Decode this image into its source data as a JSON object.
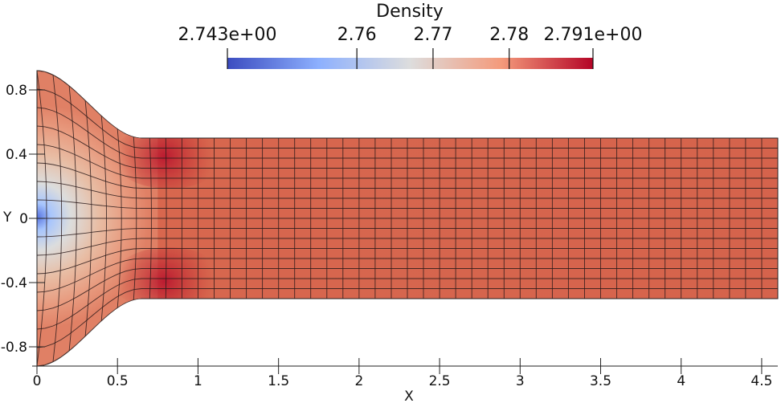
{
  "chart_data": {
    "type": "heatmap",
    "title": "Density",
    "xlabel": "X",
    "ylabel": "Y",
    "xlim": [
      0,
      4.6
    ],
    "ylim": [
      -0.92,
      0.92
    ],
    "x_ticks": [
      0,
      0.5,
      1,
      1.5,
      2,
      2.5,
      3,
      3.5,
      4,
      4.5
    ],
    "x_tick_labels": [
      "0",
      "0.5",
      "1",
      "1.5",
      "2",
      "2.5",
      "3",
      "3.5",
      "4",
      "4.5"
    ],
    "y_ticks": [
      0.8,
      0.4,
      0,
      -0.4,
      -0.8
    ],
    "y_tick_labels": [
      "0.8",
      "0.4",
      "0",
      "-0.4",
      "-0.8"
    ],
    "colorbar": {
      "label": "Density",
      "range": [
        2.743,
        2.791
      ],
      "min_label": "2.743e+00",
      "max_label": "2.791e+00",
      "ticks": [
        2.76,
        2.77,
        2.78
      ],
      "tick_labels": [
        "2.76",
        "2.77",
        "2.78"
      ],
      "colormap": "cool-to-warm",
      "colors": [
        "#3b4cc0",
        "#dddddd",
        "#b40426"
      ],
      "placement": "top"
    },
    "domain": {
      "inlet_half_height": 0.92,
      "contraction_end_x": 0.65,
      "channel_half_height": 0.5,
      "outlet_x": 4.6
    },
    "field_samples": [
      {
        "x": 0.0,
        "y": 0.0,
        "value": 2.743
      },
      {
        "x": 0.1,
        "y": 0.0,
        "value": 2.758
      },
      {
        "x": 0.2,
        "y": 0.5,
        "value": 2.78
      },
      {
        "x": 0.3,
        "y": 0.0,
        "value": 2.768
      },
      {
        "x": 0.8,
        "y": 0.38,
        "value": 2.791
      },
      {
        "x": 0.8,
        "y": -0.4,
        "value": 2.791
      },
      {
        "x": 1.0,
        "y": 0.0,
        "value": 2.786
      },
      {
        "x": 2.0,
        "y": 0.0,
        "value": 2.787
      },
      {
        "x": 4.5,
        "y": 0.0,
        "value": 2.787
      }
    ],
    "grid_lines": "on"
  }
}
